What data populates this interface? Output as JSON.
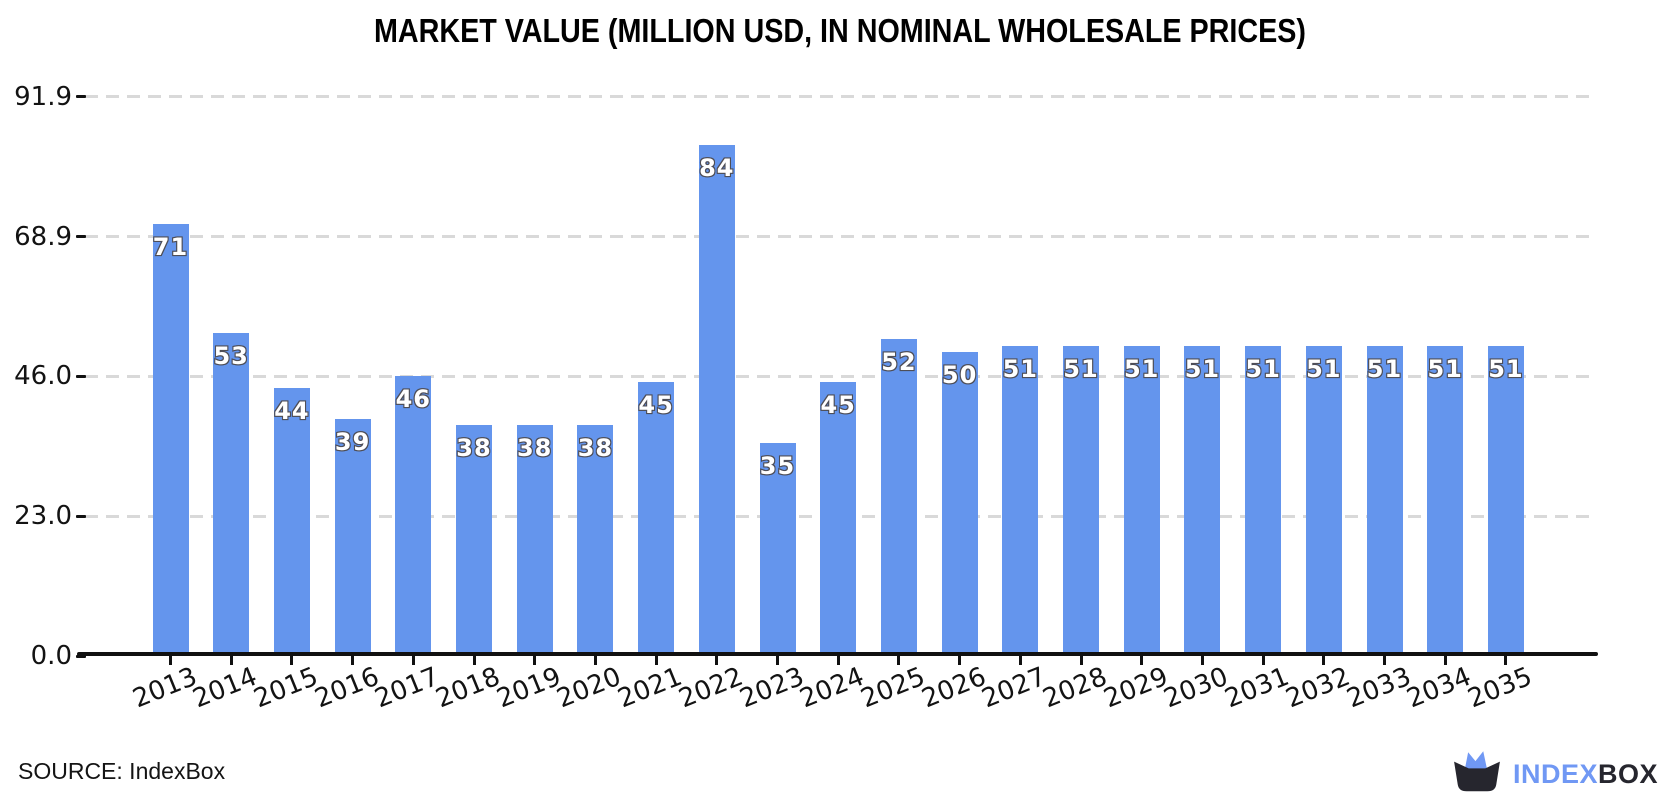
{
  "title": "MARKET VALUE (MILLION USD, IN NOMINAL WHOLESALE PRICES)",
  "source": {
    "label": "SOURCE: IndexBox"
  },
  "logo": {
    "icon": "indexbox-open-box-crown-icon",
    "text_index": "INDEX",
    "text_box": "BOX",
    "color_index": "#7098f4",
    "color_box": "#26262e"
  },
  "colors": {
    "bar": "#6495ED",
    "bar_value_fill": "#ffffff",
    "bar_value_outline": "#4e4e57",
    "gridline": "#d9d9d9",
    "axis": "#111111",
    "text": "#131313"
  },
  "chart_data": {
    "type": "bar",
    "title": "MARKET VALUE (MILLION USD, IN NOMINAL WHOLESALE PRICES)",
    "categories": [
      "2013",
      "2014",
      "2015",
      "2016",
      "2017",
      "2018",
      "2019",
      "2020",
      "2021",
      "2022",
      "2023",
      "2024",
      "2025",
      "2026",
      "2027",
      "2028",
      "2029",
      "2030",
      "2031",
      "2032",
      "2033",
      "2034",
      "2035"
    ],
    "values": [
      71,
      53,
      44,
      39,
      46,
      38,
      38,
      38,
      45,
      84,
      35,
      45,
      52,
      50,
      51,
      51,
      51,
      51,
      51,
      51,
      51,
      51,
      51
    ],
    "xlabel": "",
    "ylabel": "",
    "ylim": [
      0,
      91.9
    ],
    "yticks": [
      0.0,
      23.0,
      46.0,
      68.9,
      91.9
    ],
    "ytick_labels": [
      "0.0",
      "23.0",
      "46.0",
      "68.9",
      "91.9"
    ],
    "grid": "horizontal-dashed",
    "legend": "none",
    "value_labels_shown": true
  }
}
